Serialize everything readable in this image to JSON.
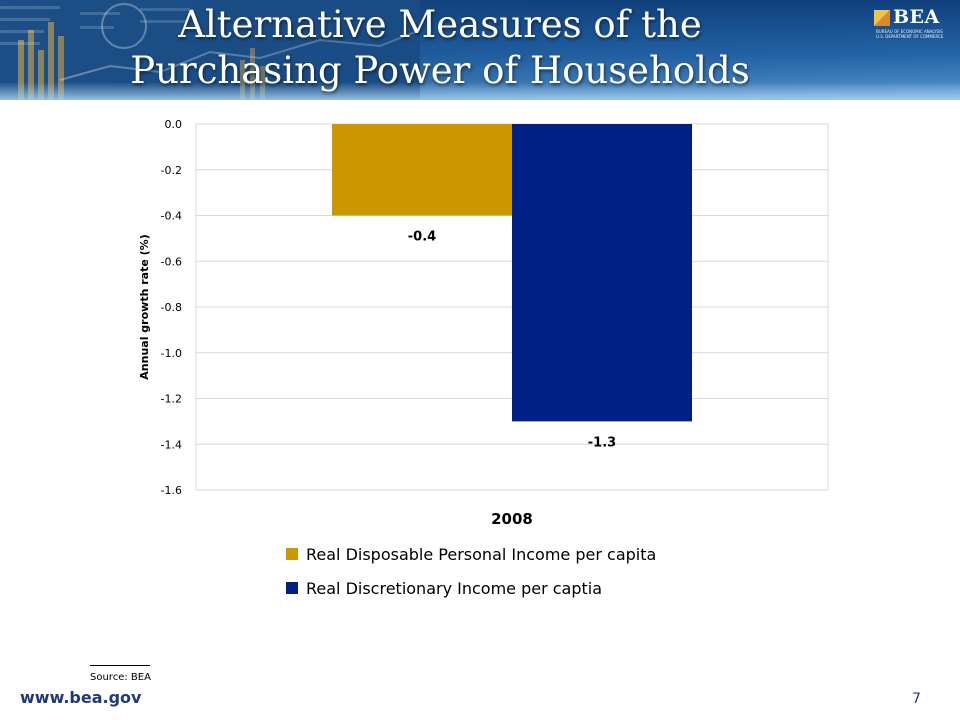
{
  "header": {
    "title_line1": "Alternative Measures of the",
    "title_line2": "Purchasing Power of Households",
    "logo_text": "BEA",
    "logo_sub1": "BUREAU OF ECONOMIC ANALYSIS",
    "logo_sub2": "U.S. DEPARTMENT OF COMMERCE"
  },
  "chart_data": {
    "type": "bar",
    "categories": [
      "2008"
    ],
    "series": [
      {
        "name": "Real Disposable Personal Income per capita",
        "values": [
          -0.4
        ],
        "color": "#cc9600"
      },
      {
        "name": "Real Discretionary Income per captia",
        "values": [
          -1.3
        ],
        "color": "#002085"
      }
    ],
    "data_labels": [
      "-0.4",
      "-1.3"
    ],
    "ylabel": "Annual growth rate (%)",
    "ylim": [
      -1.6,
      0.0
    ],
    "yticks": [
      "0.0",
      "-0.2",
      "-0.4",
      "-0.6",
      "-0.8",
      "-1.0",
      "-1.2",
      "-1.4",
      "-1.6"
    ],
    "grid": true,
    "legend_position": "bottom"
  },
  "footer": {
    "source": "Source: BEA",
    "url": "www.bea.gov",
    "page_number": "7"
  },
  "colors": {
    "banner": "#2466a8",
    "footer_text": "#1f3a78",
    "gridline": "#d9d9d9"
  }
}
